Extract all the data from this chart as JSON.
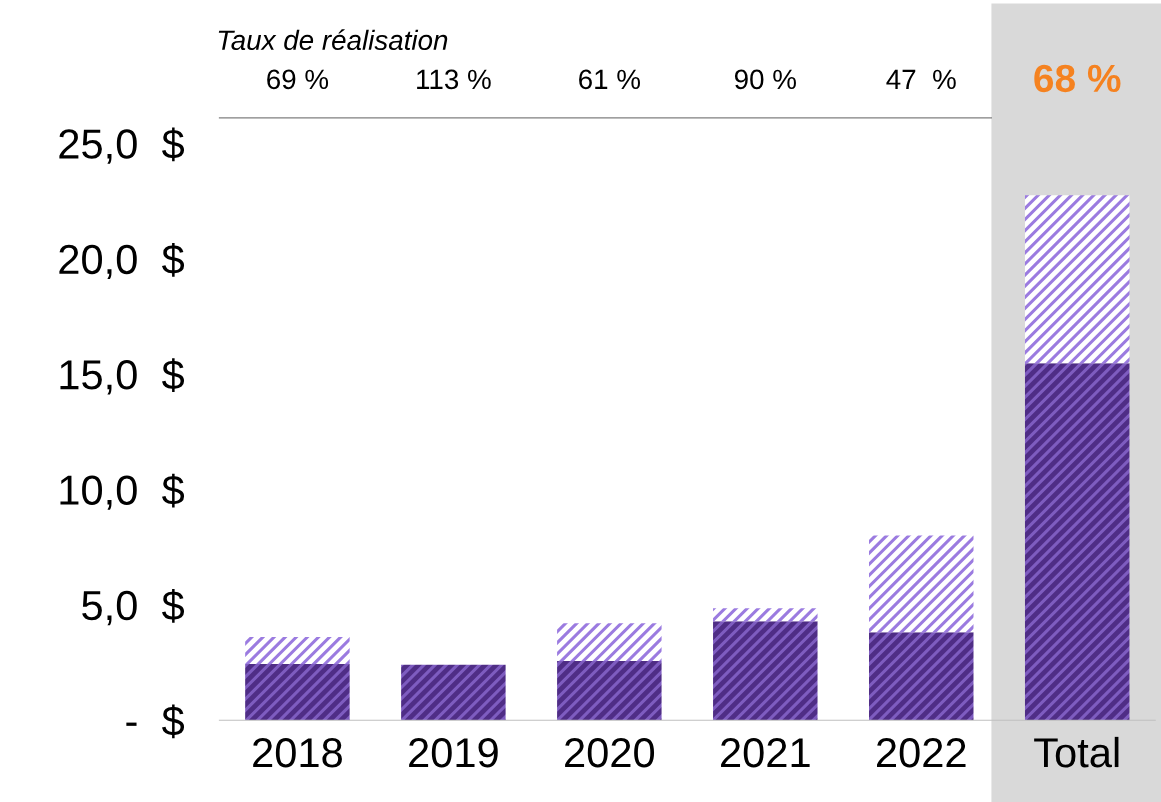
{
  "chart_data": {
    "type": "bar",
    "stacked": true,
    "categories": [
      "2018",
      "2019",
      "2020",
      "2021",
      "2022",
      "Total"
    ],
    "series": [
      {
        "color": "#4f2d86",
        "values": [
          2.43,
          2.4,
          2.56,
          4.29,
          3.81,
          15.47
        ]
      },
      {
        "color": "#9b7be0",
        "values": [
          1.17,
          0,
          1.64,
          0.56,
          4.19,
          7.28
        ]
      }
    ],
    "ylim": [
      0,
      26.1
    ],
    "yticks": [
      {
        "value": 0,
        "label": "-  $"
      },
      {
        "value": 5,
        "label": "5,0  $"
      },
      {
        "value": 10,
        "label": "10,0  $"
      },
      {
        "value": 15,
        "label": "15,0  $"
      },
      {
        "value": 20,
        "label": "20,0  $"
      },
      {
        "value": 25,
        "label": "25,0  $"
      }
    ],
    "bands": [
      {
        "axis": "x",
        "from": "Total",
        "to": "Total",
        "color": "#d9d9d9"
      }
    ],
    "annotations": [
      "Taux de réalisation",
      "69 %",
      "113 %",
      "61 %",
      "90 %",
      "47  %",
      "68 %"
    ],
    "grid": false,
    "legend": false
  }
}
